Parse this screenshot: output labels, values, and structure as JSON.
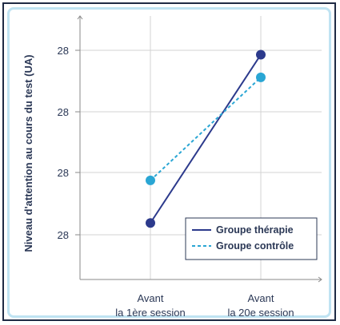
{
  "chart_data": {
    "type": "line",
    "title": "",
    "ylabel": "Niveau d'attention au cours du test (UA)",
    "xlabel": "",
    "categories": [
      [
        "Avant",
        "la 1ère session"
      ],
      [
        "Avant",
        "la 20e session"
      ]
    ],
    "yticks": [
      "28",
      "28",
      "28",
      "28"
    ],
    "ylim": [
      0,
      100
    ],
    "grid": true,
    "legend_position": "bottom-right",
    "series": [
      {
        "name": "Groupe thérapie",
        "values": [
          6.7,
          96.4
        ],
        "color": "#2c3a8c",
        "style": "solid"
      },
      {
        "name": "Groupe contrôle",
        "values": [
          29.4,
          84.3
        ],
        "color": "#2aa6d4",
        "style": "dashed"
      }
    ]
  }
}
